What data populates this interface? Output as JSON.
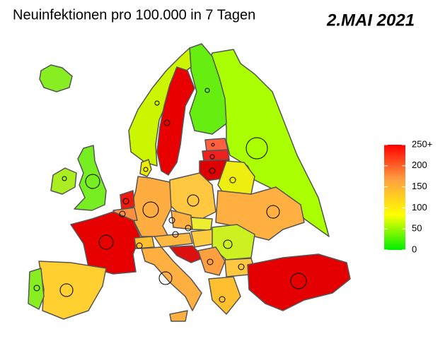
{
  "header": {
    "title": "Neuinfektionen pro 100.000 in 7 Tagen",
    "date": "2.MAI 2021"
  },
  "legend": {
    "range": [
      0,
      250
    ],
    "colors": [
      "#00ee00",
      "#ffff00",
      "#ffa040",
      "#ff0000"
    ],
    "ticks": [
      {
        "value": 250,
        "label": "250+"
      },
      200,
      150,
      100,
      50,
      0
    ]
  }
}
